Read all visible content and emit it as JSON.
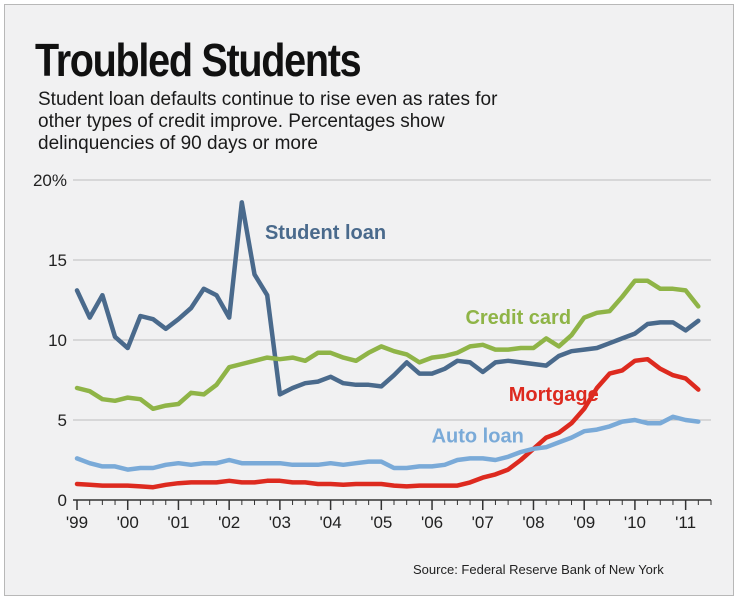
{
  "title": "Troubled Students",
  "subtitle": "Student loan defaults continue to rise even as rates for other types of credit improve. Percentages show delinquencies of 90 days or more",
  "source": "Source: Federal Reserve Bank of New York",
  "colors": {
    "student_loan": "#4a6a8c",
    "credit_card": "#8fb447",
    "mortgage": "#dd2a1f",
    "auto_loan": "#7aaad8",
    "grid": "#bdbdbd",
    "axis": "#333333"
  },
  "chart_data": {
    "type": "line",
    "ylim": [
      0,
      20
    ],
    "y_ticks": [
      0,
      5,
      10,
      15,
      20
    ],
    "y_tick_labels": [
      "0",
      "5",
      "10",
      "15",
      "20%"
    ],
    "xlim": [
      1999,
      2011.5
    ],
    "x_ticks": [
      1999,
      2000,
      2001,
      2002,
      2003,
      2004,
      2005,
      2006,
      2007,
      2008,
      2009,
      2010,
      2011
    ],
    "x_tick_labels": [
      "'99",
      "'00",
      "'01",
      "'02",
      "'03",
      "'04",
      "'05",
      "'06",
      "'07",
      "'08",
      "'09",
      "'10",
      "'11"
    ],
    "grid": true,
    "series": [
      {
        "name": "Student loan",
        "color_key": "student_loan",
        "label_at": [
          2003.9,
          16.3
        ],
        "x": [
          1999,
          1999.25,
          1999.5,
          1999.75,
          2000,
          2000.25,
          2000.5,
          2000.75,
          2001,
          2001.25,
          2001.5,
          2001.75,
          2002,
          2002.25,
          2002.5,
          2002.75,
          2003,
          2003.25,
          2003.5,
          2003.75,
          2004,
          2004.25,
          2004.5,
          2004.75,
          2005,
          2005.25,
          2005.5,
          2005.75,
          2006,
          2006.25,
          2006.5,
          2006.75,
          2007,
          2007.25,
          2007.5,
          2007.75,
          2008,
          2008.25,
          2008.5,
          2008.75,
          2009,
          2009.25,
          2009.5,
          2009.75,
          2010,
          2010.25,
          2010.5,
          2010.75,
          2011,
          2011.25
        ],
        "y": [
          13.1,
          11.4,
          12.8,
          10.2,
          9.5,
          11.5,
          11.3,
          10.7,
          11.3,
          12.0,
          13.2,
          12.8,
          11.4,
          18.6,
          14.1,
          12.8,
          6.6,
          7.0,
          7.3,
          7.4,
          7.7,
          7.3,
          7.2,
          7.2,
          7.1,
          7.8,
          8.6,
          7.9,
          7.9,
          8.2,
          8.7,
          8.6,
          8.0,
          8.6,
          8.7,
          8.6,
          8.5,
          8.4,
          9.0,
          9.3,
          9.4,
          9.5,
          9.8,
          10.1,
          10.4,
          11.0,
          11.1,
          11.1,
          10.6,
          11.2
        ]
      },
      {
        "name": "Credit card",
        "color_key": "credit_card",
        "label_at": [
          2007.7,
          11.0
        ],
        "x": [
          1999,
          1999.25,
          1999.5,
          1999.75,
          2000,
          2000.25,
          2000.5,
          2000.75,
          2001,
          2001.25,
          2001.5,
          2001.75,
          2002,
          2002.25,
          2002.5,
          2002.75,
          2003,
          2003.25,
          2003.5,
          2003.75,
          2004,
          2004.25,
          2004.5,
          2004.75,
          2005,
          2005.25,
          2005.5,
          2005.75,
          2006,
          2006.25,
          2006.5,
          2006.75,
          2007,
          2007.25,
          2007.5,
          2007.75,
          2008,
          2008.25,
          2008.5,
          2008.75,
          2009,
          2009.25,
          2009.5,
          2009.75,
          2010,
          2010.25,
          2010.5,
          2010.75,
          2011,
          2011.25
        ],
        "y": [
          7.0,
          6.8,
          6.3,
          6.2,
          6.4,
          6.3,
          5.7,
          5.9,
          6.0,
          6.7,
          6.6,
          7.2,
          8.3,
          8.5,
          8.7,
          8.9,
          8.8,
          8.9,
          8.7,
          9.2,
          9.2,
          8.9,
          8.7,
          9.2,
          9.6,
          9.3,
          9.1,
          8.6,
          8.9,
          9.0,
          9.2,
          9.6,
          9.7,
          9.4,
          9.4,
          9.5,
          9.5,
          10.1,
          9.6,
          10.3,
          11.4,
          11.7,
          11.8,
          12.7,
          13.7,
          13.7,
          13.2,
          13.2,
          13.1,
          12.1
        ]
      },
      {
        "name": "Mortgage",
        "color_key": "mortgage",
        "label_at": [
          2008.4,
          6.2
        ],
        "x": [
          1999,
          1999.25,
          1999.5,
          1999.75,
          2000,
          2000.25,
          2000.5,
          2000.75,
          2001,
          2001.25,
          2001.5,
          2001.75,
          2002,
          2002.25,
          2002.5,
          2002.75,
          2003,
          2003.25,
          2003.5,
          2003.75,
          2004,
          2004.25,
          2004.5,
          2004.75,
          2005,
          2005.25,
          2005.5,
          2005.75,
          2006,
          2006.25,
          2006.5,
          2006.75,
          2007,
          2007.25,
          2007.5,
          2007.75,
          2008,
          2008.25,
          2008.5,
          2008.75,
          2009,
          2009.25,
          2009.5,
          2009.75,
          2010,
          2010.25,
          2010.5,
          2010.75,
          2011,
          2011.25
        ],
        "y": [
          1.0,
          0.95,
          0.9,
          0.9,
          0.9,
          0.85,
          0.8,
          0.95,
          1.05,
          1.1,
          1.1,
          1.1,
          1.2,
          1.1,
          1.1,
          1.2,
          1.2,
          1.1,
          1.1,
          1.0,
          1.0,
          0.95,
          1.0,
          1.0,
          1.0,
          0.9,
          0.85,
          0.9,
          0.9,
          0.9,
          0.9,
          1.1,
          1.4,
          1.6,
          1.9,
          2.5,
          3.2,
          3.9,
          4.2,
          4.8,
          5.7,
          7.0,
          7.9,
          8.1,
          8.7,
          8.8,
          8.2,
          7.8,
          7.6,
          6.9
        ]
      },
      {
        "name": "Auto loan",
        "color_key": "auto_loan",
        "label_at": [
          2006.9,
          3.6
        ],
        "x": [
          1999,
          1999.25,
          1999.5,
          1999.75,
          2000,
          2000.25,
          2000.5,
          2000.75,
          2001,
          2001.25,
          2001.5,
          2001.75,
          2002,
          2002.25,
          2002.5,
          2002.75,
          2003,
          2003.25,
          2003.5,
          2003.75,
          2004,
          2004.25,
          2004.5,
          2004.75,
          2005,
          2005.25,
          2005.5,
          2005.75,
          2006,
          2006.25,
          2006.5,
          2006.75,
          2007,
          2007.25,
          2007.5,
          2007.75,
          2008,
          2008.25,
          2008.5,
          2008.75,
          2009,
          2009.25,
          2009.5,
          2009.75,
          2010,
          2010.25,
          2010.5,
          2010.75,
          2011,
          2011.25
        ],
        "y": [
          2.6,
          2.3,
          2.1,
          2.1,
          1.9,
          2.0,
          2.0,
          2.2,
          2.3,
          2.2,
          2.3,
          2.3,
          2.5,
          2.3,
          2.3,
          2.3,
          2.3,
          2.2,
          2.2,
          2.2,
          2.3,
          2.2,
          2.3,
          2.4,
          2.4,
          2.0,
          2.0,
          2.1,
          2.1,
          2.2,
          2.5,
          2.6,
          2.6,
          2.5,
          2.7,
          3.0,
          3.2,
          3.3,
          3.6,
          3.9,
          4.3,
          4.4,
          4.6,
          4.9,
          5.0,
          4.8,
          4.8,
          5.2,
          5.0,
          4.9
        ]
      }
    ]
  }
}
